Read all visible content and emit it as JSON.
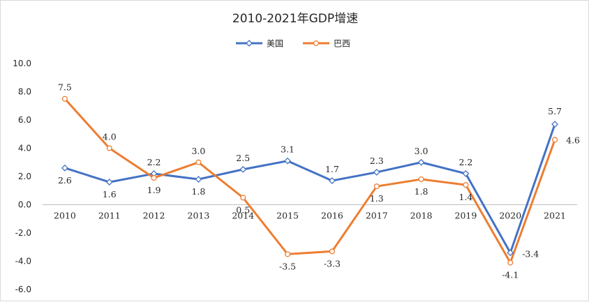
{
  "chart_data": {
    "type": "line",
    "title": "2010-2021年GDP增速",
    "categories": [
      "2010",
      "2011",
      "2012",
      "2013",
      "2014",
      "2015",
      "2016",
      "2017",
      "2018",
      "2019",
      "2020",
      "2021"
    ],
    "series": [
      {
        "name": "美国",
        "color": "#4472c4",
        "values": [
          2.6,
          1.6,
          2.2,
          1.8,
          2.5,
          3.1,
          1.7,
          2.3,
          3.0,
          2.2,
          -3.4,
          5.7
        ],
        "labels": [
          "2.6",
          "1.6",
          "2.2",
          "1.8",
          "2.5",
          "3.1",
          "1.7",
          "2.3",
          "3.0",
          "2.2",
          "-3.4",
          "5.7"
        ]
      },
      {
        "name": "巴西",
        "color": "#ed7d31",
        "values": [
          7.5,
          4.0,
          1.9,
          3.0,
          0.5,
          -3.5,
          -3.3,
          1.3,
          1.8,
          1.4,
          -4.1,
          4.6
        ],
        "labels": [
          "7.5",
          "4.0",
          "1.9",
          "3.0",
          "0.5",
          "-3.5",
          "-3.3",
          "1.3",
          "1.8",
          "1.4",
          "-4.1",
          "4.6"
        ]
      }
    ],
    "yticks": [
      "10.0",
      "8.0",
      "6.0",
      "4.0",
      "2.0",
      "0.0",
      "-2.0",
      "-4.0",
      "-6.0"
    ],
    "ylim": [
      -6,
      10
    ],
    "legend": "top-center",
    "grid": false
  }
}
